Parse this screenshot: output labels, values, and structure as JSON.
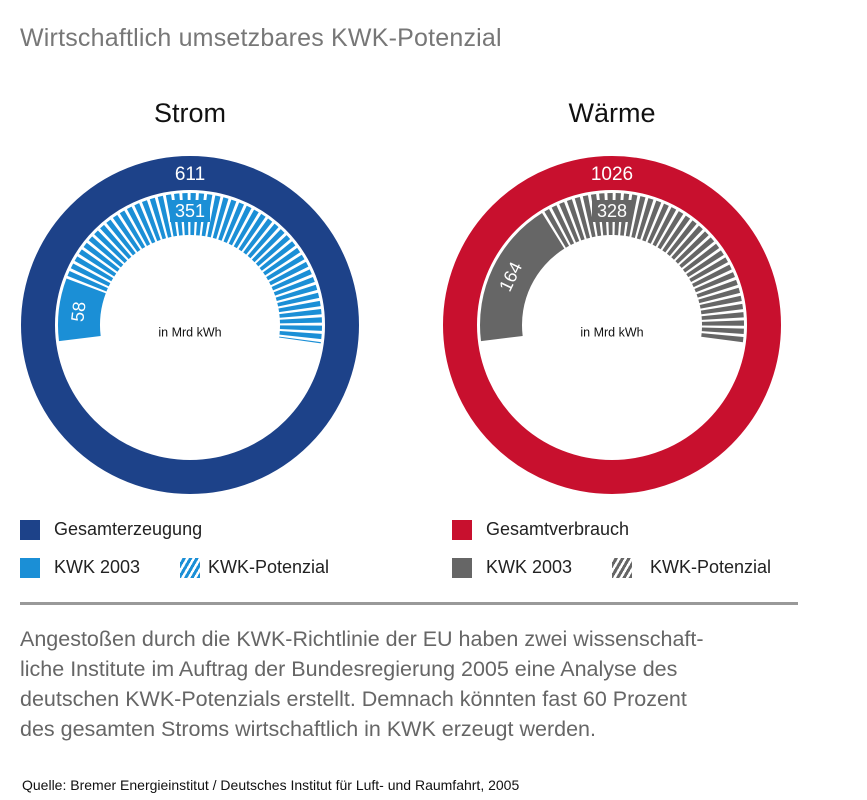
{
  "title": "Wirtschaftlich umsetzbares KWK-Potenzial",
  "chart_data": [
    {
      "type": "donut",
      "title": "Strom",
      "unit_label": "in Mrd kWh",
      "total": {
        "name": "Gesamterzeugung",
        "value": 611,
        "color": "#1d4289"
      },
      "kwk_2003": {
        "name": "KWK 2003",
        "value": 58,
        "color": "#1b8fd6"
      },
      "kwk_potenzial": {
        "name": "KWK-Potenzial",
        "value": 351,
        "color": "#1b8fd6",
        "pattern": "hatched"
      }
    },
    {
      "type": "donut",
      "title": "Wärme",
      "unit_label": "in Mrd kWh",
      "total": {
        "name": "Gesamtverbrauch",
        "value": 1026,
        "color": "#c8102e"
      },
      "kwk_2003": {
        "name": "KWK 2003",
        "value": 164,
        "color": "#666666"
      },
      "kwk_potenzial": {
        "name": "KWK-Potenzial",
        "value": 328,
        "color": "#666666",
        "pattern": "hatched"
      }
    }
  ],
  "body_lines": [
    "Angestoßen durch die KWK-Richtlinie der EU haben zwei wissenschaft-",
    "liche Institute im Auftrag der Bundesregierung 2005 eine Analyse des",
    "deutschen KWK-Potenzials erstellt. Demnach könnten fast 60 Prozent",
    "des gesamten Stroms wirtschaftlich in KWK erzeugt werden."
  ],
  "source": "Quelle: Bremer Energieinstitut / Deutsches Institut für Luft- und Raumfahrt, 2005"
}
